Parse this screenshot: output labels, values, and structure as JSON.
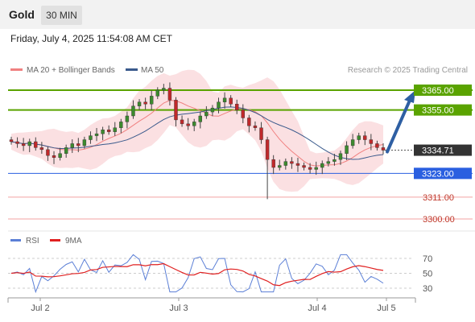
{
  "header": {
    "title": "Gold",
    "timeframe": "30 MIN"
  },
  "timestamp": "Friday, July 4, 2025 11:54:08 AM CET",
  "legend": {
    "ma20_label": "MA 20 + Bollinger Bands",
    "ma50_label": "MA 50",
    "credit": "Research © 2025 Trading Central"
  },
  "colors": {
    "resistance": "#5aa300",
    "support": "#2a5fe0",
    "target_line": "#f3a3a3",
    "price_box": "#333333",
    "arrow": "#2e5fa3",
    "ma20": "#f08080",
    "ma50": "#3a5a8c",
    "bands": "#fadadd",
    "up_candle": "#3c8a2e",
    "down_candle": "#c0292b",
    "rsi": "#5b7fd6",
    "rsi_ma": "#e02020"
  },
  "chart_data": {
    "type": "candlestick",
    "x_tick_labels": [
      "Jul 2",
      "Jul 3",
      "Jul 4",
      "Jul 5"
    ],
    "y_range": [
      3290,
      3375
    ],
    "levels": [
      {
        "label": "3365.00",
        "value": 3365.0,
        "kind": "resistance"
      },
      {
        "label": "3355.00",
        "value": 3355.0,
        "kind": "resistance"
      },
      {
        "label": "3334.71",
        "value": 3334.71,
        "kind": "last-price"
      },
      {
        "label": "3323.00",
        "value": 3323.0,
        "kind": "support"
      },
      {
        "label": "3311.00",
        "value": 3311.0,
        "kind": "target"
      },
      {
        "label": "3300.00",
        "value": 3300.0,
        "kind": "target"
      }
    ],
    "close_series": [
      3339,
      3338,
      3337,
      3339,
      3336,
      3335,
      3332,
      3331,
      3333,
      3336,
      3338,
      3337,
      3340,
      3342,
      3343,
      3345,
      3344,
      3346,
      3349,
      3352,
      3357,
      3359,
      3358,
      3362,
      3365,
      3366,
      3360,
      3350,
      3348,
      3347,
      3349,
      3352,
      3354,
      3356,
      3359,
      3361,
      3358,
      3355,
      3351,
      3347,
      3346,
      3340,
      3330,
      3326,
      3327,
      3329,
      3328,
      3327,
      3326,
      3325,
      3326,
      3328,
      3329,
      3330,
      3333,
      3337,
      3340,
      3342,
      3340,
      3338,
      3336,
      3334.71
    ],
    "rsi": {
      "axis_labels": [
        70,
        50,
        30
      ],
      "range": [
        20,
        80
      ],
      "legend": [
        "RSI",
        "9MA"
      ]
    }
  }
}
